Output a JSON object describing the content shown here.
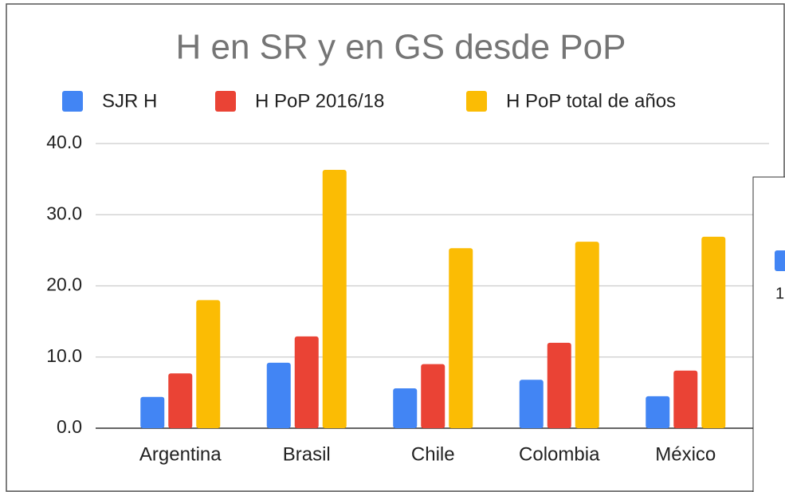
{
  "chart_data": {
    "type": "bar",
    "title": "H en SR y en GS desde PoP",
    "categories": [
      "Argentina",
      "Brasil",
      "Chile",
      "Colombia",
      "México"
    ],
    "series": [
      {
        "name": "SJR H",
        "color": "#4285f4",
        "values": [
          4.4,
          9.2,
          5.6,
          6.8,
          4.5
        ]
      },
      {
        "name": "H PoP 2016/18",
        "color": "#ea4335",
        "values": [
          7.7,
          12.9,
          9.0,
          12.0,
          8.1
        ]
      },
      {
        "name": "H PoP total de años",
        "color": "#fbbc04",
        "values": [
          18.0,
          36.3,
          25.3,
          26.2,
          26.9
        ]
      }
    ],
    "ylim": [
      0,
      40
    ],
    "yticks": [
      {
        "value": 0,
        "label": "0.0"
      },
      {
        "value": 10,
        "label": "10.0"
      },
      {
        "value": 20,
        "label": "20.0"
      },
      {
        "value": 30,
        "label": "30.0"
      },
      {
        "value": 40,
        "label": "40.0"
      }
    ],
    "grid": true,
    "legend": "top"
  },
  "overlay_panel": {
    "text": "1"
  }
}
